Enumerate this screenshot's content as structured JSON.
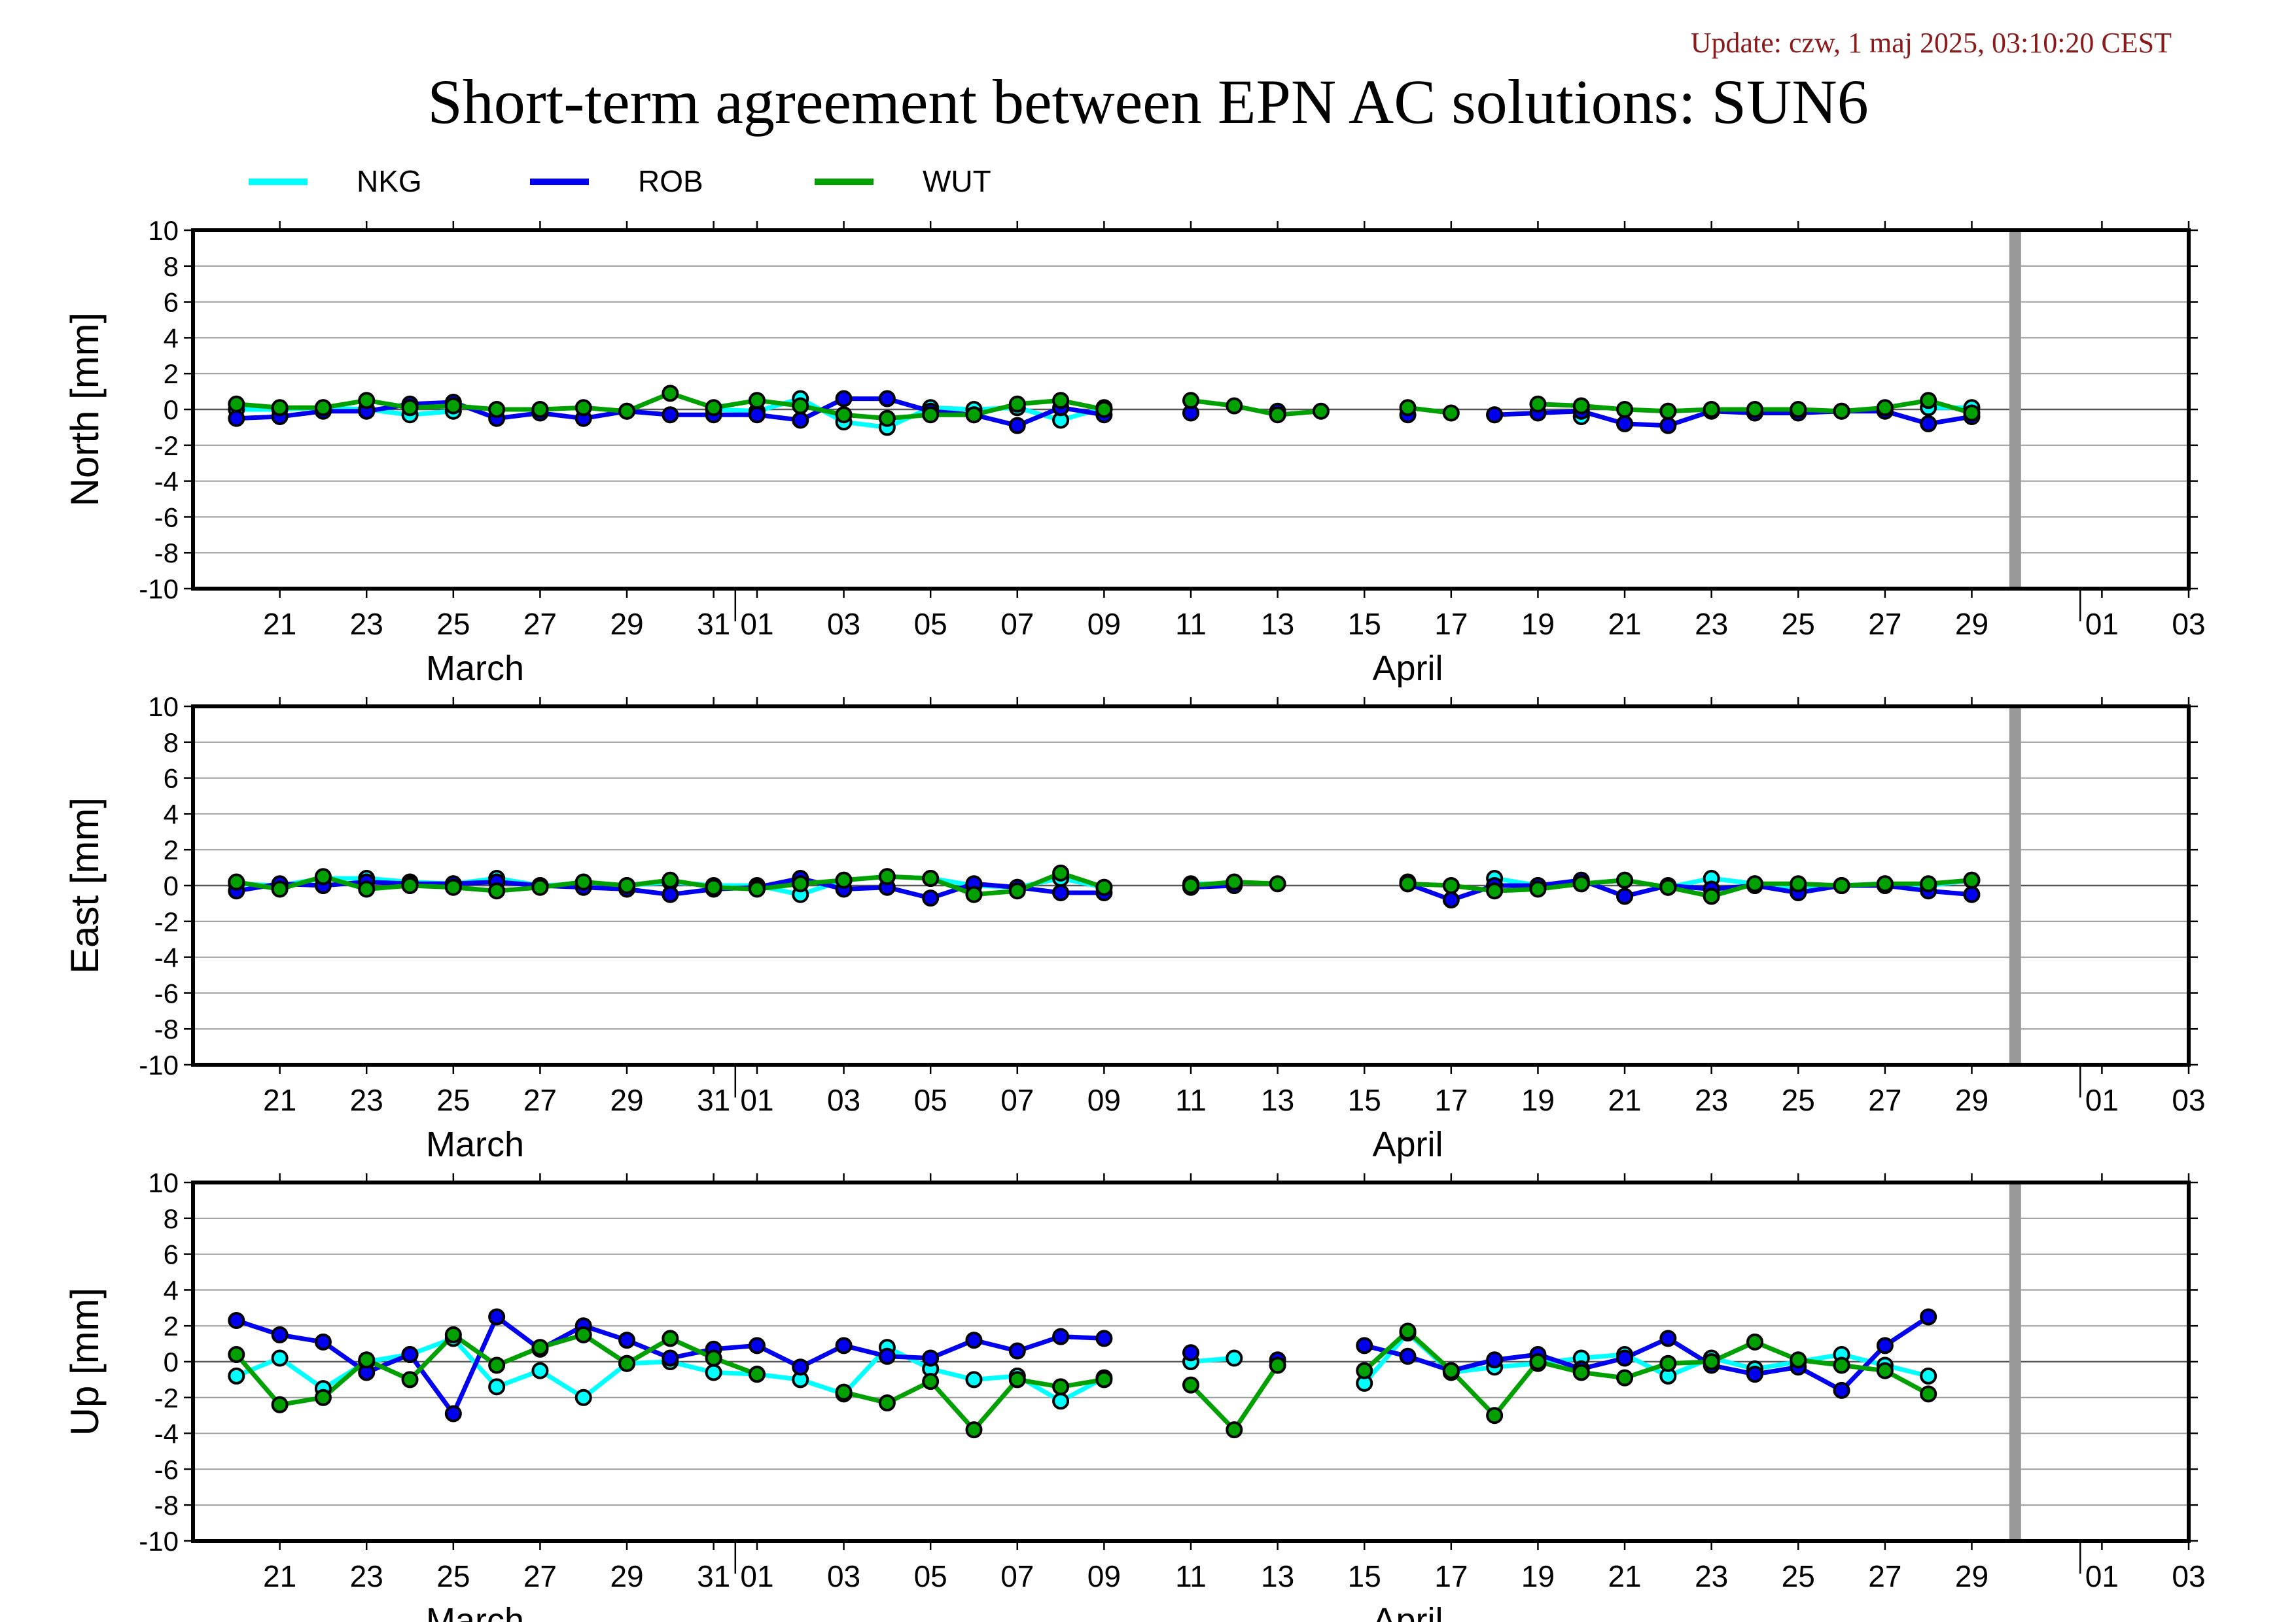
{
  "update_text": "Update: czw, 1 maj 2025, 03:10:20 CEST",
  "title": "Short-term agreement between EPN AC solutions: SUN6",
  "legend": [
    {
      "name": "NKG",
      "color": "#00ffff"
    },
    {
      "name": "ROB",
      "color": "#0000ee"
    },
    {
      "name": "WUT",
      "color": "#00a000"
    }
  ],
  "x_ticks": [
    "21",
    "23",
    "25",
    "27",
    "29",
    "31",
    "01",
    "03",
    "05",
    "07",
    "09",
    "11",
    "13",
    "15",
    "17",
    "19",
    "21",
    "23",
    "25",
    "27",
    "29",
    "01",
    "03"
  ],
  "month_labels": [
    "March",
    "April"
  ],
  "chart_data": [
    {
      "type": "line",
      "ylabel": "North [mm]",
      "ylim": [
        -10,
        10
      ],
      "yticks": [
        10,
        8,
        6,
        4,
        2,
        0,
        -2,
        -4,
        -6,
        -8,
        -10
      ],
      "grid": true,
      "gap_marker_day": 41,
      "x": [
        0,
        1,
        2,
        3,
        4,
        5,
        6,
        7,
        8,
        9,
        10,
        11,
        12,
        13,
        14,
        15,
        16,
        17,
        18,
        19,
        20,
        21,
        22,
        23,
        24,
        25,
        26,
        27,
        28,
        29,
        30,
        31,
        32,
        33,
        34,
        35,
        36,
        37,
        38,
        39,
        40
      ],
      "series": [
        {
          "name": "NKG",
          "values": [
            0.0,
            0.0,
            0.1,
            0.0,
            -0.3,
            -0.1,
            null,
            null,
            null,
            null,
            null,
            0.0,
            -0.1,
            0.6,
            -0.7,
            -1.0,
            0.1,
            0.0,
            0.1,
            -0.6,
            0.1,
            null,
            null,
            null,
            null,
            null,
            null,
            null,
            null,
            -0.3,
            null,
            -0.4,
            null,
            -0.1,
            null,
            null,
            null,
            null,
            null,
            0.1,
            0.1
          ]
        },
        {
          "name": "ROB",
          "values": [
            -0.5,
            -0.4,
            -0.1,
            -0.1,
            0.3,
            0.4,
            -0.5,
            -0.2,
            -0.5,
            -0.1,
            -0.3,
            -0.3,
            -0.3,
            -0.6,
            0.6,
            0.6,
            -0.1,
            -0.3,
            -0.9,
            0.1,
            -0.3,
            null,
            -0.2,
            null,
            -0.1,
            null,
            null,
            -0.3,
            null,
            -0.3,
            -0.2,
            -0.1,
            -0.8,
            -0.9,
            -0.1,
            -0.2,
            -0.2,
            -0.1,
            -0.1,
            -0.8,
            -0.4
          ]
        },
        {
          "name": "WUT",
          "values": [
            0.3,
            0.1,
            0.1,
            0.5,
            0.1,
            0.2,
            0.0,
            0.0,
            0.1,
            -0.1,
            0.9,
            0.1,
            0.5,
            0.2,
            -0.3,
            -0.5,
            -0.3,
            -0.3,
            0.3,
            0.5,
            0.0,
            null,
            0.5,
            0.2,
            -0.3,
            -0.1,
            null,
            0.1,
            -0.2,
            null,
            0.3,
            0.2,
            0.0,
            -0.1,
            0.0,
            0.0,
            0.0,
            -0.1,
            0.1,
            0.5,
            -0.2
          ]
        }
      ]
    },
    {
      "type": "line",
      "ylabel": "East [mm]",
      "ylim": [
        -10,
        10
      ],
      "yticks": [
        10,
        8,
        6,
        4,
        2,
        0,
        -2,
        -4,
        -6,
        -8,
        -10
      ],
      "grid": true,
      "gap_marker_day": 41,
      "x": [
        0,
        1,
        2,
        3,
        4,
        5,
        6,
        7,
        8,
        9,
        10,
        11,
        12,
        13,
        14,
        15,
        16,
        17,
        18,
        19,
        20,
        21,
        22,
        23,
        24,
        25,
        26,
        27,
        28,
        29,
        30,
        31,
        32,
        33,
        34,
        35,
        36,
        37,
        38,
        39,
        40
      ],
      "series": [
        {
          "name": "NKG",
          "values": [
            0.1,
            0.0,
            0.4,
            0.4,
            0.2,
            0.1,
            0.4,
            0.0,
            0.1,
            0.0,
            0.2,
            0.0,
            0.0,
            -0.5,
            0.3,
            0.5,
            0.4,
            0.0,
            -0.1,
            0.4,
            -0.1,
            null,
            0.1,
            0.1,
            null,
            null,
            null,
            0.2,
            null,
            0.4,
            0.0,
            0.1,
            0.3,
            -0.1,
            0.4,
            0.1,
            -0.1,
            0.0,
            0.1,
            0.0,
            0.3
          ]
        },
        {
          "name": "ROB",
          "values": [
            -0.3,
            0.1,
            0.0,
            0.2,
            0.1,
            0.1,
            0.2,
            0.0,
            -0.1,
            -0.2,
            -0.5,
            -0.2,
            -0.1,
            0.4,
            -0.2,
            -0.1,
            -0.7,
            0.1,
            -0.1,
            -0.4,
            -0.4,
            null,
            -0.1,
            0.0,
            null,
            null,
            null,
            0.1,
            -0.8,
            0.0,
            0.0,
            0.3,
            -0.6,
            0.0,
            -0.2,
            0.0,
            -0.4,
            0.0,
            0.0,
            -0.3,
            -0.5
          ]
        },
        {
          "name": "WUT",
          "values": [
            0.2,
            -0.2,
            0.5,
            -0.2,
            0.0,
            -0.1,
            -0.3,
            -0.1,
            0.2,
            0.0,
            0.3,
            -0.1,
            -0.2,
            0.1,
            0.3,
            0.5,
            0.4,
            -0.5,
            -0.3,
            0.7,
            -0.1,
            null,
            0.0,
            0.2,
            0.1,
            null,
            null,
            0.1,
            0.0,
            -0.3,
            -0.2,
            0.1,
            0.3,
            -0.1,
            -0.6,
            0.1,
            0.1,
            0.0,
            0.1,
            0.1,
            0.3
          ]
        }
      ]
    },
    {
      "type": "line",
      "ylabel": "Up [mm]",
      "ylim": [
        -10,
        10
      ],
      "yticks": [
        10,
        8,
        6,
        4,
        2,
        0,
        -2,
        -4,
        -6,
        -8,
        -10
      ],
      "grid": true,
      "gap_marker_day": 41,
      "x": [
        0,
        1,
        2,
        3,
        4,
        5,
        6,
        7,
        8,
        9,
        10,
        11,
        12,
        13,
        14,
        15,
        16,
        17,
        18,
        19,
        20,
        21,
        22,
        23,
        24,
        25,
        26,
        27,
        28,
        29,
        30,
        31,
        32,
        33,
        34,
        35,
        36,
        37,
        38,
        39,
        40
      ],
      "series": [
        {
          "name": "NKG",
          "values": [
            -0.8,
            0.2,
            -1.5,
            0.0,
            0.4,
            1.3,
            -1.4,
            -0.5,
            -2.0,
            -0.1,
            0.0,
            -0.6,
            -0.7,
            -1.0,
            -1.8,
            0.8,
            -0.4,
            -1.0,
            -0.8,
            -2.2,
            -0.9,
            null,
            0.0,
            0.2,
            null,
            null,
            -1.2,
            1.6,
            -0.6,
            -0.3,
            -0.1,
            0.2,
            0.4,
            -0.8,
            0.2,
            -0.4,
            0.0,
            0.4,
            -0.2,
            -0.8,
            null
          ]
        },
        {
          "name": "ROB",
          "values": [
            2.3,
            1.5,
            1.1,
            -0.6,
            0.4,
            -2.9,
            2.5,
            0.7,
            2.0,
            1.2,
            0.2,
            0.7,
            0.9,
            -0.3,
            0.9,
            0.3,
            0.2,
            1.2,
            0.6,
            1.4,
            1.3,
            null,
            0.5,
            null,
            0.1,
            null,
            0.9,
            0.3,
            -0.5,
            0.1,
            0.4,
            -0.4,
            0.2,
            1.3,
            -0.2,
            -0.7,
            -0.3,
            -1.6,
            0.9,
            2.5,
            null
          ]
        },
        {
          "name": "WUT",
          "values": [
            0.4,
            -2.4,
            -2.0,
            0.1,
            -1.0,
            1.5,
            -0.2,
            0.8,
            1.5,
            -0.1,
            1.3,
            0.2,
            -0.7,
            null,
            -1.7,
            -2.3,
            -1.1,
            -3.8,
            -1.0,
            -1.4,
            -1.0,
            null,
            -1.3,
            -3.8,
            -0.2,
            null,
            -0.5,
            1.7,
            -0.5,
            -3.0,
            0.0,
            -0.6,
            -0.9,
            -0.1,
            0.0,
            1.1,
            0.1,
            -0.2,
            -0.5,
            -1.8,
            null
          ]
        }
      ]
    }
  ]
}
